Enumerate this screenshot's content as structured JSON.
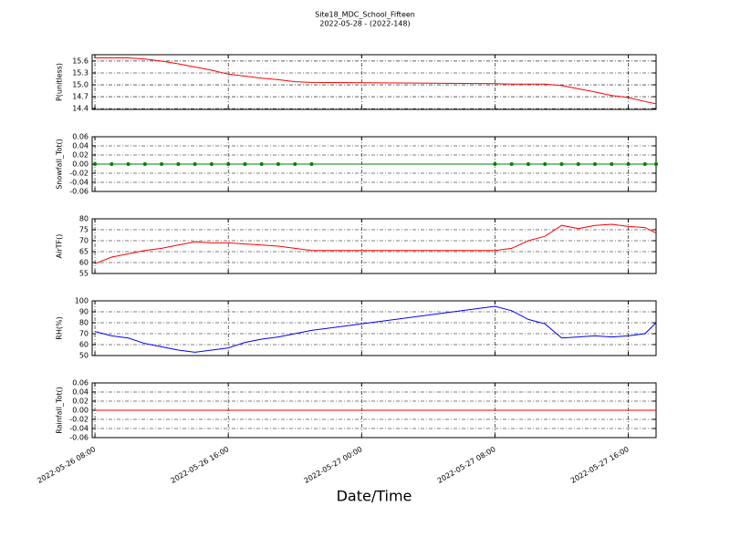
{
  "chart_data": [
    {
      "type": "line",
      "title": "Site18_MDC_School_Fifteen",
      "subtitle": "2022-05-28 - (2022-148)",
      "ylabel": "P(unitless)",
      "x": [
        "2022-05-26 08:00",
        "2022-05-26 09:00",
        "2022-05-26 10:00",
        "2022-05-26 11:00",
        "2022-05-26 12:00",
        "2022-05-26 13:00",
        "2022-05-26 14:00",
        "2022-05-26 15:00",
        "2022-05-26 16:00",
        "2022-05-26 17:00",
        "2022-05-26 18:00",
        "2022-05-26 19:00",
        "2022-05-26 20:00",
        "2022-05-26 21:00",
        "2022-05-27 08:00",
        "2022-05-27 09:00",
        "2022-05-27 10:00",
        "2022-05-27 11:00",
        "2022-05-27 12:00",
        "2022-05-27 13:00",
        "2022-05-27 14:00",
        "2022-05-27 15:00",
        "2022-05-27 16:00",
        "2022-05-27 17:00",
        "2022-05-27 17:40"
      ],
      "values": [
        15.68,
        15.68,
        15.68,
        15.65,
        15.6,
        15.53,
        15.45,
        15.37,
        15.27,
        15.22,
        15.17,
        15.13,
        15.08,
        15.06,
        15.03,
        15.02,
        15.02,
        15.02,
        14.98,
        14.9,
        14.82,
        14.73,
        14.68,
        14.58,
        14.52
      ],
      "color": "#ff0000",
      "marker": false,
      "xlim": [
        "2022-05-26 07:50",
        "2022-05-27 17:40"
      ],
      "xticks": [
        "2022-05-26 08:00",
        "2022-05-26 16:00",
        "2022-05-27 00:00",
        "2022-05-27 08:00",
        "2022-05-27 16:00"
      ],
      "ylim": [
        14.38,
        15.76
      ],
      "yticks": [
        15.6,
        15.3,
        {
          "value": 15,
          "label": "15.0"
        },
        14.7,
        14.4
      ],
      "grid": true
    },
    {
      "type": "line",
      "ylabel": "Snowfall_Tot()",
      "x": [
        "2022-05-26 08:00",
        "2022-05-26 09:00",
        "2022-05-26 10:00",
        "2022-05-26 11:00",
        "2022-05-26 12:00",
        "2022-05-26 13:00",
        "2022-05-26 14:00",
        "2022-05-26 15:00",
        "2022-05-26 16:00",
        "2022-05-26 17:00",
        "2022-05-26 18:00",
        "2022-05-26 19:00",
        "2022-05-26 20:00",
        "2022-05-26 21:00",
        "2022-05-27 08:00",
        "2022-05-27 09:00",
        "2022-05-27 10:00",
        "2022-05-27 11:00",
        "2022-05-27 12:00",
        "2022-05-27 13:00",
        "2022-05-27 14:00",
        "2022-05-27 15:00",
        "2022-05-27 16:00",
        "2022-05-27 17:00",
        "2022-05-27 17:40"
      ],
      "values": [
        0,
        0,
        0,
        0,
        0,
        0,
        0,
        0,
        0,
        0,
        0,
        0,
        0,
        0,
        0,
        0,
        0,
        0,
        0,
        0,
        0,
        0,
        0,
        0,
        0
      ],
      "color": "#008000",
      "marker": true,
      "xlim": [
        "2022-05-26 07:50",
        "2022-05-27 17:40"
      ],
      "xticks": [
        "2022-05-26 08:00",
        "2022-05-26 16:00",
        "2022-05-27 00:00",
        "2022-05-27 08:00",
        "2022-05-27 16:00"
      ],
      "ylim": [
        -0.06,
        0.06
      ],
      "yticks": [
        0.06,
        0.04,
        0.02,
        {
          "value": 0,
          "label": "0.00"
        },
        -0.02,
        -0.04,
        -0.06
      ],
      "grid": true
    },
    {
      "type": "line",
      "ylabel": "AirTF()",
      "x": [
        "2022-05-26 08:00",
        "2022-05-26 09:00",
        "2022-05-26 10:00",
        "2022-05-26 11:00",
        "2022-05-26 12:00",
        "2022-05-26 13:00",
        "2022-05-26 14:00",
        "2022-05-26 15:00",
        "2022-05-26 16:00",
        "2022-05-26 17:00",
        "2022-05-26 18:00",
        "2022-05-26 19:00",
        "2022-05-26 20:00",
        "2022-05-26 21:00",
        "2022-05-27 08:00",
        "2022-05-27 09:00",
        "2022-05-27 10:00",
        "2022-05-27 11:00",
        "2022-05-27 12:00",
        "2022-05-27 13:00",
        "2022-05-27 14:00",
        "2022-05-27 15:00",
        "2022-05-27 16:00",
        "2022-05-27 17:00",
        "2022-05-27 17:40"
      ],
      "values": [
        59.5,
        62.5,
        64,
        65.5,
        66.5,
        68,
        69.5,
        69,
        69,
        68.5,
        68,
        67.5,
        66.5,
        65.5,
        65.5,
        66.5,
        70,
        72,
        77,
        75.5,
        77,
        77.5,
        76.5,
        76,
        73.5
      ],
      "color": "#ff0000",
      "marker": false,
      "xlim": [
        "2022-05-26 07:50",
        "2022-05-27 17:40"
      ],
      "xticks": [
        "2022-05-26 08:00",
        "2022-05-26 16:00",
        "2022-05-27 00:00",
        "2022-05-27 08:00",
        "2022-05-27 16:00"
      ],
      "ylim": [
        55,
        80
      ],
      "yticks": [
        80,
        75,
        70,
        65,
        60,
        55
      ],
      "grid": true
    },
    {
      "type": "line",
      "ylabel": "RH(%)",
      "x": [
        "2022-05-26 08:00",
        "2022-05-26 09:00",
        "2022-05-26 10:00",
        "2022-05-26 11:00",
        "2022-05-26 12:00",
        "2022-05-26 13:00",
        "2022-05-26 14:00",
        "2022-05-26 15:00",
        "2022-05-26 16:00",
        "2022-05-26 17:00",
        "2022-05-26 18:00",
        "2022-05-26 19:00",
        "2022-05-26 20:00",
        "2022-05-26 21:00",
        "2022-05-27 08:00",
        "2022-05-27 09:00",
        "2022-05-27 10:00",
        "2022-05-27 11:00",
        "2022-05-27 12:00",
        "2022-05-27 13:00",
        "2022-05-27 14:00",
        "2022-05-27 15:00",
        "2022-05-27 16:00",
        "2022-05-27 17:00",
        "2022-05-27 17:40"
      ],
      "values": [
        72,
        68,
        66,
        61,
        58,
        55,
        53,
        55,
        57,
        62,
        65,
        67,
        70,
        73,
        95,
        91,
        83,
        79,
        66,
        67,
        68,
        67,
        68,
        70,
        80
      ],
      "color": "#0000ff",
      "marker": false,
      "xlim": [
        "2022-05-26 07:50",
        "2022-05-27 17:40"
      ],
      "xticks": [
        "2022-05-26 08:00",
        "2022-05-26 16:00",
        "2022-05-27 00:00",
        "2022-05-27 08:00",
        "2022-05-27 16:00"
      ],
      "ylim": [
        50,
        100
      ],
      "yticks": [
        100,
        90,
        80,
        70,
        60,
        50
      ],
      "grid": true
    },
    {
      "type": "line",
      "ylabel": "Rainfall_Tot()",
      "xlabel": "Date/Time",
      "x": [
        "2022-05-26 08:00",
        "2022-05-26 09:00",
        "2022-05-26 10:00",
        "2022-05-26 11:00",
        "2022-05-26 12:00",
        "2022-05-26 13:00",
        "2022-05-26 14:00",
        "2022-05-26 15:00",
        "2022-05-26 16:00",
        "2022-05-26 17:00",
        "2022-05-26 18:00",
        "2022-05-26 19:00",
        "2022-05-26 20:00",
        "2022-05-26 21:00",
        "2022-05-27 08:00",
        "2022-05-27 09:00",
        "2022-05-27 10:00",
        "2022-05-27 11:00",
        "2022-05-27 12:00",
        "2022-05-27 13:00",
        "2022-05-27 14:00",
        "2022-05-27 15:00",
        "2022-05-27 16:00",
        "2022-05-27 17:00",
        "2022-05-27 17:40"
      ],
      "values": [
        0,
        0,
        0,
        0,
        0,
        0,
        0,
        0,
        0,
        0,
        0,
        0,
        0,
        0,
        0,
        0,
        0,
        0,
        0,
        0,
        0,
        0,
        0,
        0,
        0
      ],
      "color": "#ff0000",
      "marker": false,
      "xlim": [
        "2022-05-26 07:50",
        "2022-05-27 17:40"
      ],
      "xticks": [
        "2022-05-26 08:00",
        "2022-05-26 16:00",
        "2022-05-27 00:00",
        "2022-05-27 08:00",
        "2022-05-27 16:00"
      ],
      "ylim": [
        -0.06,
        0.06
      ],
      "yticks": [
        0.06,
        0.04,
        0.02,
        {
          "value": 0,
          "label": "0.00"
        },
        -0.02,
        -0.04,
        -0.06
      ],
      "grid": true
    }
  ]
}
